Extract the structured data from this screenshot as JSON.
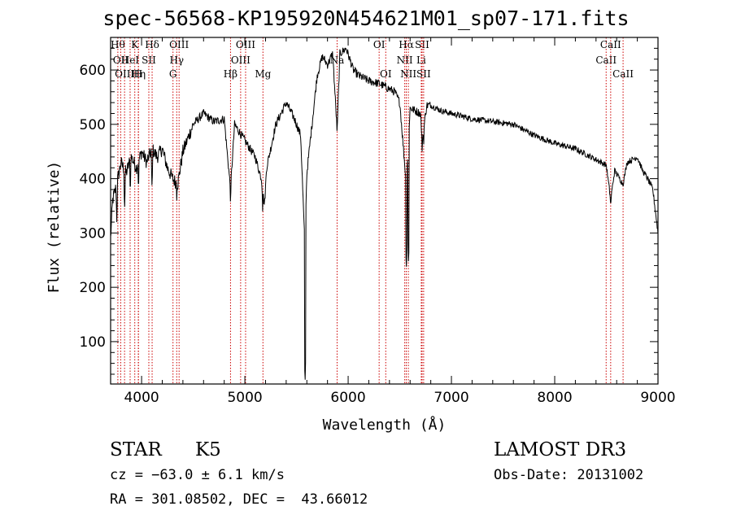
{
  "chart_data": {
    "type": "line",
    "title": "spec-56568-KP195920N454621M01_sp07-171.fits",
    "xlabel": "Wavelength (Å)",
    "ylabel": "Flux (relative)",
    "xlim": [
      3700,
      9000
    ],
    "ylim": [
      22,
      660
    ],
    "x_ticks": [
      4000,
      5000,
      6000,
      7000,
      8000,
      9000
    ],
    "y_ticks": [
      100,
      200,
      300,
      400,
      500,
      600
    ],
    "grid": false,
    "series": [
      {
        "name": "flux",
        "color": "#000000",
        "anchors": [
          [
            3700,
            290
          ],
          [
            3720,
            360
          ],
          [
            3760,
            390
          ],
          [
            3800,
            430
          ],
          [
            3850,
            410
          ],
          [
            3900,
            440
          ],
          [
            3950,
            420
          ],
          [
            4000,
            450
          ],
          [
            4050,
            430
          ],
          [
            4100,
            455
          ],
          [
            4150,
            440
          ],
          [
            4200,
            455
          ],
          [
            4250,
            420
          ],
          [
            4300,
            400
          ],
          [
            4350,
            390
          ],
          [
            4400,
            450
          ],
          [
            4500,
            500
          ],
          [
            4600,
            520
          ],
          [
            4700,
            505
          ],
          [
            4800,
            510
          ],
          [
            4861,
            380
          ],
          [
            4900,
            500
          ],
          [
            5000,
            470
          ],
          [
            5100,
            440
          ],
          [
            5160,
            400
          ],
          [
            5190,
            350
          ],
          [
            5210,
            420
          ],
          [
            5300,
            500
          ],
          [
            5400,
            540
          ],
          [
            5480,
            510
          ],
          [
            5540,
            480
          ],
          [
            5580,
            280
          ],
          [
            5600,
            410
          ],
          [
            5650,
            500
          ],
          [
            5700,
            590
          ],
          [
            5750,
            625
          ],
          [
            5800,
            610
          ],
          [
            5850,
            630
          ],
          [
            5893,
            490
          ],
          [
            5920,
            630
          ],
          [
            5980,
            640
          ],
          [
            6050,
            600
          ],
          [
            6100,
            590
          ],
          [
            6200,
            580
          ],
          [
            6300,
            575
          ],
          [
            6400,
            565
          ],
          [
            6450,
            560
          ],
          [
            6500,
            540
          ],
          [
            6563,
            390
          ],
          [
            6600,
            530
          ],
          [
            6700,
            520
          ],
          [
            6717,
            470
          ],
          [
            6760,
            535
          ],
          [
            6800,
            535
          ],
          [
            6900,
            525
          ],
          [
            7000,
            520
          ],
          [
            7200,
            510
          ],
          [
            7400,
            505
          ],
          [
            7600,
            500
          ],
          [
            7800,
            480
          ],
          [
            8000,
            465
          ],
          [
            8200,
            455
          ],
          [
            8400,
            435
          ],
          [
            8500,
            425
          ],
          [
            8542,
            360
          ],
          [
            8580,
            415
          ],
          [
            8662,
            390
          ],
          [
            8700,
            430
          ],
          [
            8800,
            440
          ],
          [
            8850,
            415
          ],
          [
            8900,
            400
          ],
          [
            8950,
            380
          ],
          [
            9000,
            300
          ]
        ],
        "absorption_spikes": [
          [
            3760,
            320
          ],
          [
            3835,
            340
          ],
          [
            3890,
            370
          ],
          [
            3970,
            375
          ],
          [
            4101,
            380
          ],
          [
            4340,
            360
          ],
          [
            4861,
            350
          ],
          [
            5172,
            340
          ],
          [
            5583,
            22
          ],
          [
            5893,
            480
          ],
          [
            6563,
            230
          ],
          [
            6585,
            240
          ],
          [
            6716,
            450
          ],
          [
            6731,
            455
          ],
          [
            8542,
            340
          ],
          [
            8662,
            380
          ]
        ]
      }
    ],
    "line_markers": [
      {
        "w": 3770,
        "label": "Hθ",
        "row": 0
      },
      {
        "w": 3798,
        "label": "OII",
        "row": 1
      },
      {
        "w": 3835,
        "label": "OIII",
        "row": 2
      },
      {
        "w": 3889,
        "label": "HeI",
        "row": 1
      },
      {
        "w": 3934,
        "label": "K",
        "row": 0
      },
      {
        "w": 3970,
        "label": "Hη",
        "row": 2
      },
      {
        "w": 3968,
        "label": "H",
        "row": 2
      },
      {
        "w": 4070,
        "label": "SII",
        "row": 1
      },
      {
        "w": 4102,
        "label": "Hδ",
        "row": 0
      },
      {
        "w": 4304,
        "label": "G",
        "row": 2
      },
      {
        "w": 4340,
        "label": "Hγ",
        "row": 1
      },
      {
        "w": 4363,
        "label": "OIII",
        "row": 0
      },
      {
        "w": 4861,
        "label": "Hβ",
        "row": 2
      },
      {
        "w": 4959,
        "label": "OIII",
        "row": 1
      },
      {
        "w": 5007,
        "label": "OIII",
        "row": 0
      },
      {
        "w": 5175,
        "label": "Mg",
        "row": 2
      },
      {
        "w": 5893,
        "label": "Na",
        "row": 1
      },
      {
        "w": 6300,
        "label": "OI",
        "row": 0
      },
      {
        "w": 6364,
        "label": "OI",
        "row": 2
      },
      {
        "w": 6548,
        "label": "NII",
        "row": 1
      },
      {
        "w": 6563,
        "label": "Hα",
        "row": 0
      },
      {
        "w": 6583,
        "label": "NII",
        "row": 2
      },
      {
        "w": 6708,
        "label": "Li",
        "row": 1
      },
      {
        "w": 6716,
        "label": "SII",
        "row": 0
      },
      {
        "w": 6731,
        "label": "SII",
        "row": 2
      },
      {
        "w": 8498,
        "label": "CaII",
        "row": 1
      },
      {
        "w": 8542,
        "label": "CaII",
        "row": 0
      },
      {
        "w": 8662,
        "label": "CaII",
        "row": 2
      }
    ],
    "marker_color": "#cc0000"
  },
  "info": {
    "object_class": "STAR",
    "subclass": "K5",
    "survey": "LAMOST DR3",
    "cz": "cz = −63.0 ± 6.1 km/s",
    "obs_date": "Obs-Date: 20131002",
    "coords": "RA = 301.08502, DEC =  43.66012"
  }
}
